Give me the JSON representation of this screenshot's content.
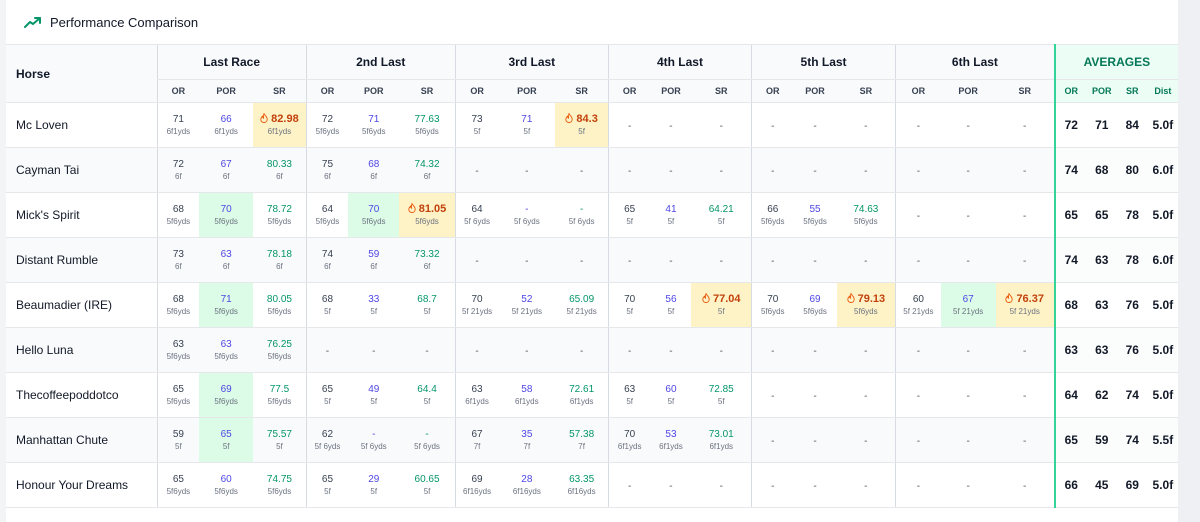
{
  "header": {
    "title": "Performance Comparison",
    "icon": "trending-up-icon",
    "accent": "#059669"
  },
  "table": {
    "horse_header": "Horse",
    "race_groups": [
      "Last Race",
      "2nd Last",
      "3rd Last",
      "4th Last",
      "5th Last",
      "6th Last"
    ],
    "sub_labels": [
      "OR",
      "POR",
      "SR"
    ],
    "averages_header": "AVERAGES",
    "avg_sub_labels": [
      "OR",
      "POR",
      "SR",
      "Dist"
    ]
  },
  "colors": {
    "por": "#4f46e5",
    "sr": "#059669",
    "highlight_green": "#dcfce7",
    "highlight_orange": "#fef3c7",
    "averages_accent": "#047857"
  },
  "rows": [
    {
      "horse": "Mc Loven",
      "races": [
        {
          "or": "71",
          "or_d": "6f1yds",
          "por": "66",
          "por_d": "6f1yds",
          "sr": "82.98",
          "sr_d": "6f1yds",
          "hl_sr": true
        },
        {
          "or": "72",
          "or_d": "5f6yds",
          "por": "71",
          "por_d": "5f6yds",
          "sr": "77.63",
          "sr_d": "5f6yds"
        },
        {
          "or": "73",
          "or_d": "5f",
          "por": "71",
          "por_d": "5f",
          "sr": "84.3",
          "sr_d": "5f",
          "hl_sr": true
        },
        null,
        null,
        null
      ],
      "avg": {
        "or": "72",
        "por": "71",
        "sr": "84",
        "dist": "5.0f"
      }
    },
    {
      "horse": "Cayman Tai",
      "races": [
        {
          "or": "72",
          "or_d": "6f",
          "por": "67",
          "por_d": "6f",
          "sr": "80.33",
          "sr_d": "6f"
        },
        {
          "or": "75",
          "or_d": "6f",
          "por": "68",
          "por_d": "6f",
          "sr": "74.32",
          "sr_d": "6f"
        },
        null,
        null,
        null,
        null
      ],
      "avg": {
        "or": "74",
        "por": "68",
        "sr": "80",
        "dist": "6.0f"
      }
    },
    {
      "horse": "Mick's Spirit",
      "races": [
        {
          "or": "68",
          "or_d": "5f6yds",
          "por": "70",
          "por_d": "5f6yds",
          "sr": "78.72",
          "sr_d": "5f6yds",
          "hl_por": true
        },
        {
          "or": "64",
          "or_d": "5f6yds",
          "por": "70",
          "por_d": "5f6yds",
          "sr": "81.05",
          "sr_d": "5f6yds",
          "hl_por": true,
          "hl_sr": true
        },
        {
          "or": "64",
          "or_d": "5f 6yds",
          "por": "-",
          "por_d": "5f 6yds",
          "sr": "-",
          "sr_d": "5f 6yds"
        },
        {
          "or": "65",
          "or_d": "5f",
          "por": "41",
          "por_d": "5f",
          "sr": "64.21",
          "sr_d": "5f"
        },
        {
          "or": "66",
          "or_d": "5f6yds",
          "por": "55",
          "por_d": "5f6yds",
          "sr": "74.63",
          "sr_d": "5f6yds"
        },
        null
      ],
      "avg": {
        "or": "65",
        "por": "65",
        "sr": "78",
        "dist": "5.0f"
      }
    },
    {
      "horse": "Distant Rumble",
      "races": [
        {
          "or": "73",
          "or_d": "6f",
          "por": "63",
          "por_d": "6f",
          "sr": "78.18",
          "sr_d": "6f"
        },
        {
          "or": "74",
          "or_d": "6f",
          "por": "59",
          "por_d": "6f",
          "sr": "73.32",
          "sr_d": "6f"
        },
        null,
        null,
        null,
        null
      ],
      "avg": {
        "or": "74",
        "por": "63",
        "sr": "78",
        "dist": "6.0f"
      }
    },
    {
      "horse": "Beaumadier (IRE)",
      "races": [
        {
          "or": "68",
          "or_d": "5f6yds",
          "por": "71",
          "por_d": "5f6yds",
          "sr": "80.05",
          "sr_d": "5f6yds",
          "hl_por": true
        },
        {
          "or": "68",
          "or_d": "5f",
          "por": "33",
          "por_d": "5f",
          "sr": "68.7",
          "sr_d": "5f"
        },
        {
          "or": "70",
          "or_d": "5f 21yds",
          "por": "52",
          "por_d": "5f 21yds",
          "sr": "65.09",
          "sr_d": "5f 21yds"
        },
        {
          "or": "70",
          "or_d": "5f",
          "por": "56",
          "por_d": "5f",
          "sr": "77.04",
          "sr_d": "5f",
          "hl_sr": true
        },
        {
          "or": "70",
          "or_d": "5f6yds",
          "por": "69",
          "por_d": "5f6yds",
          "sr": "79.13",
          "sr_d": "5f6yds",
          "hl_sr": true
        },
        {
          "or": "60",
          "or_d": "5f 21yds",
          "por": "67",
          "por_d": "5f 21yds",
          "sr": "76.37",
          "sr_d": "5f 21yds",
          "hl_por": true,
          "hl_sr": true
        }
      ],
      "avg": {
        "or": "68",
        "por": "63",
        "sr": "76",
        "dist": "5.0f"
      }
    },
    {
      "horse": "Hello Luna",
      "races": [
        {
          "or": "63",
          "or_d": "5f6yds",
          "por": "63",
          "por_d": "5f6yds",
          "sr": "76.25",
          "sr_d": "5f6yds"
        },
        null,
        null,
        null,
        null,
        null
      ],
      "avg": {
        "or": "63",
        "por": "63",
        "sr": "76",
        "dist": "5.0f"
      }
    },
    {
      "horse": "Thecoffeepoddotco",
      "races": [
        {
          "or": "65",
          "or_d": "5f6yds",
          "por": "69",
          "por_d": "5f6yds",
          "sr": "77.5",
          "sr_d": "5f6yds",
          "hl_por": true
        },
        {
          "or": "65",
          "or_d": "5f",
          "por": "49",
          "por_d": "5f",
          "sr": "64.4",
          "sr_d": "5f"
        },
        {
          "or": "63",
          "or_d": "6f1yds",
          "por": "58",
          "por_d": "6f1yds",
          "sr": "72.61",
          "sr_d": "6f1yds"
        },
        {
          "or": "63",
          "or_d": "5f",
          "por": "60",
          "por_d": "5f",
          "sr": "72.85",
          "sr_d": "5f"
        },
        null,
        null
      ],
      "avg": {
        "or": "64",
        "por": "62",
        "sr": "74",
        "dist": "5.0f"
      }
    },
    {
      "horse": "Manhattan Chute",
      "races": [
        {
          "or": "59",
          "or_d": "5f",
          "por": "65",
          "por_d": "5f",
          "sr": "75.57",
          "sr_d": "5f",
          "hl_por": true
        },
        {
          "or": "62",
          "or_d": "5f 6yds",
          "por": "-",
          "por_d": "5f 6yds",
          "sr": "-",
          "sr_d": "5f 6yds"
        },
        {
          "or": "67",
          "or_d": "7f",
          "por": "35",
          "por_d": "7f",
          "sr": "57.38",
          "sr_d": "7f"
        },
        {
          "or": "70",
          "or_d": "6f1yds",
          "por": "53",
          "por_d": "6f1yds",
          "sr": "73.01",
          "sr_d": "6f1yds"
        },
        null,
        null
      ],
      "avg": {
        "or": "65",
        "por": "59",
        "sr": "74",
        "dist": "5.5f"
      }
    },
    {
      "horse": "Honour Your Dreams",
      "races": [
        {
          "or": "65",
          "or_d": "5f6yds",
          "por": "60",
          "por_d": "5f6yds",
          "sr": "74.75",
          "sr_d": "5f6yds"
        },
        {
          "or": "65",
          "or_d": "5f",
          "por": "29",
          "por_d": "5f",
          "sr": "60.65",
          "sr_d": "5f"
        },
        {
          "or": "69",
          "or_d": "6f16yds",
          "por": "28",
          "por_d": "6f16yds",
          "sr": "63.35",
          "sr_d": "6f16yds"
        },
        null,
        null,
        null
      ],
      "avg": {
        "or": "66",
        "por": "45",
        "sr": "69",
        "dist": "5.0f"
      }
    }
  ]
}
